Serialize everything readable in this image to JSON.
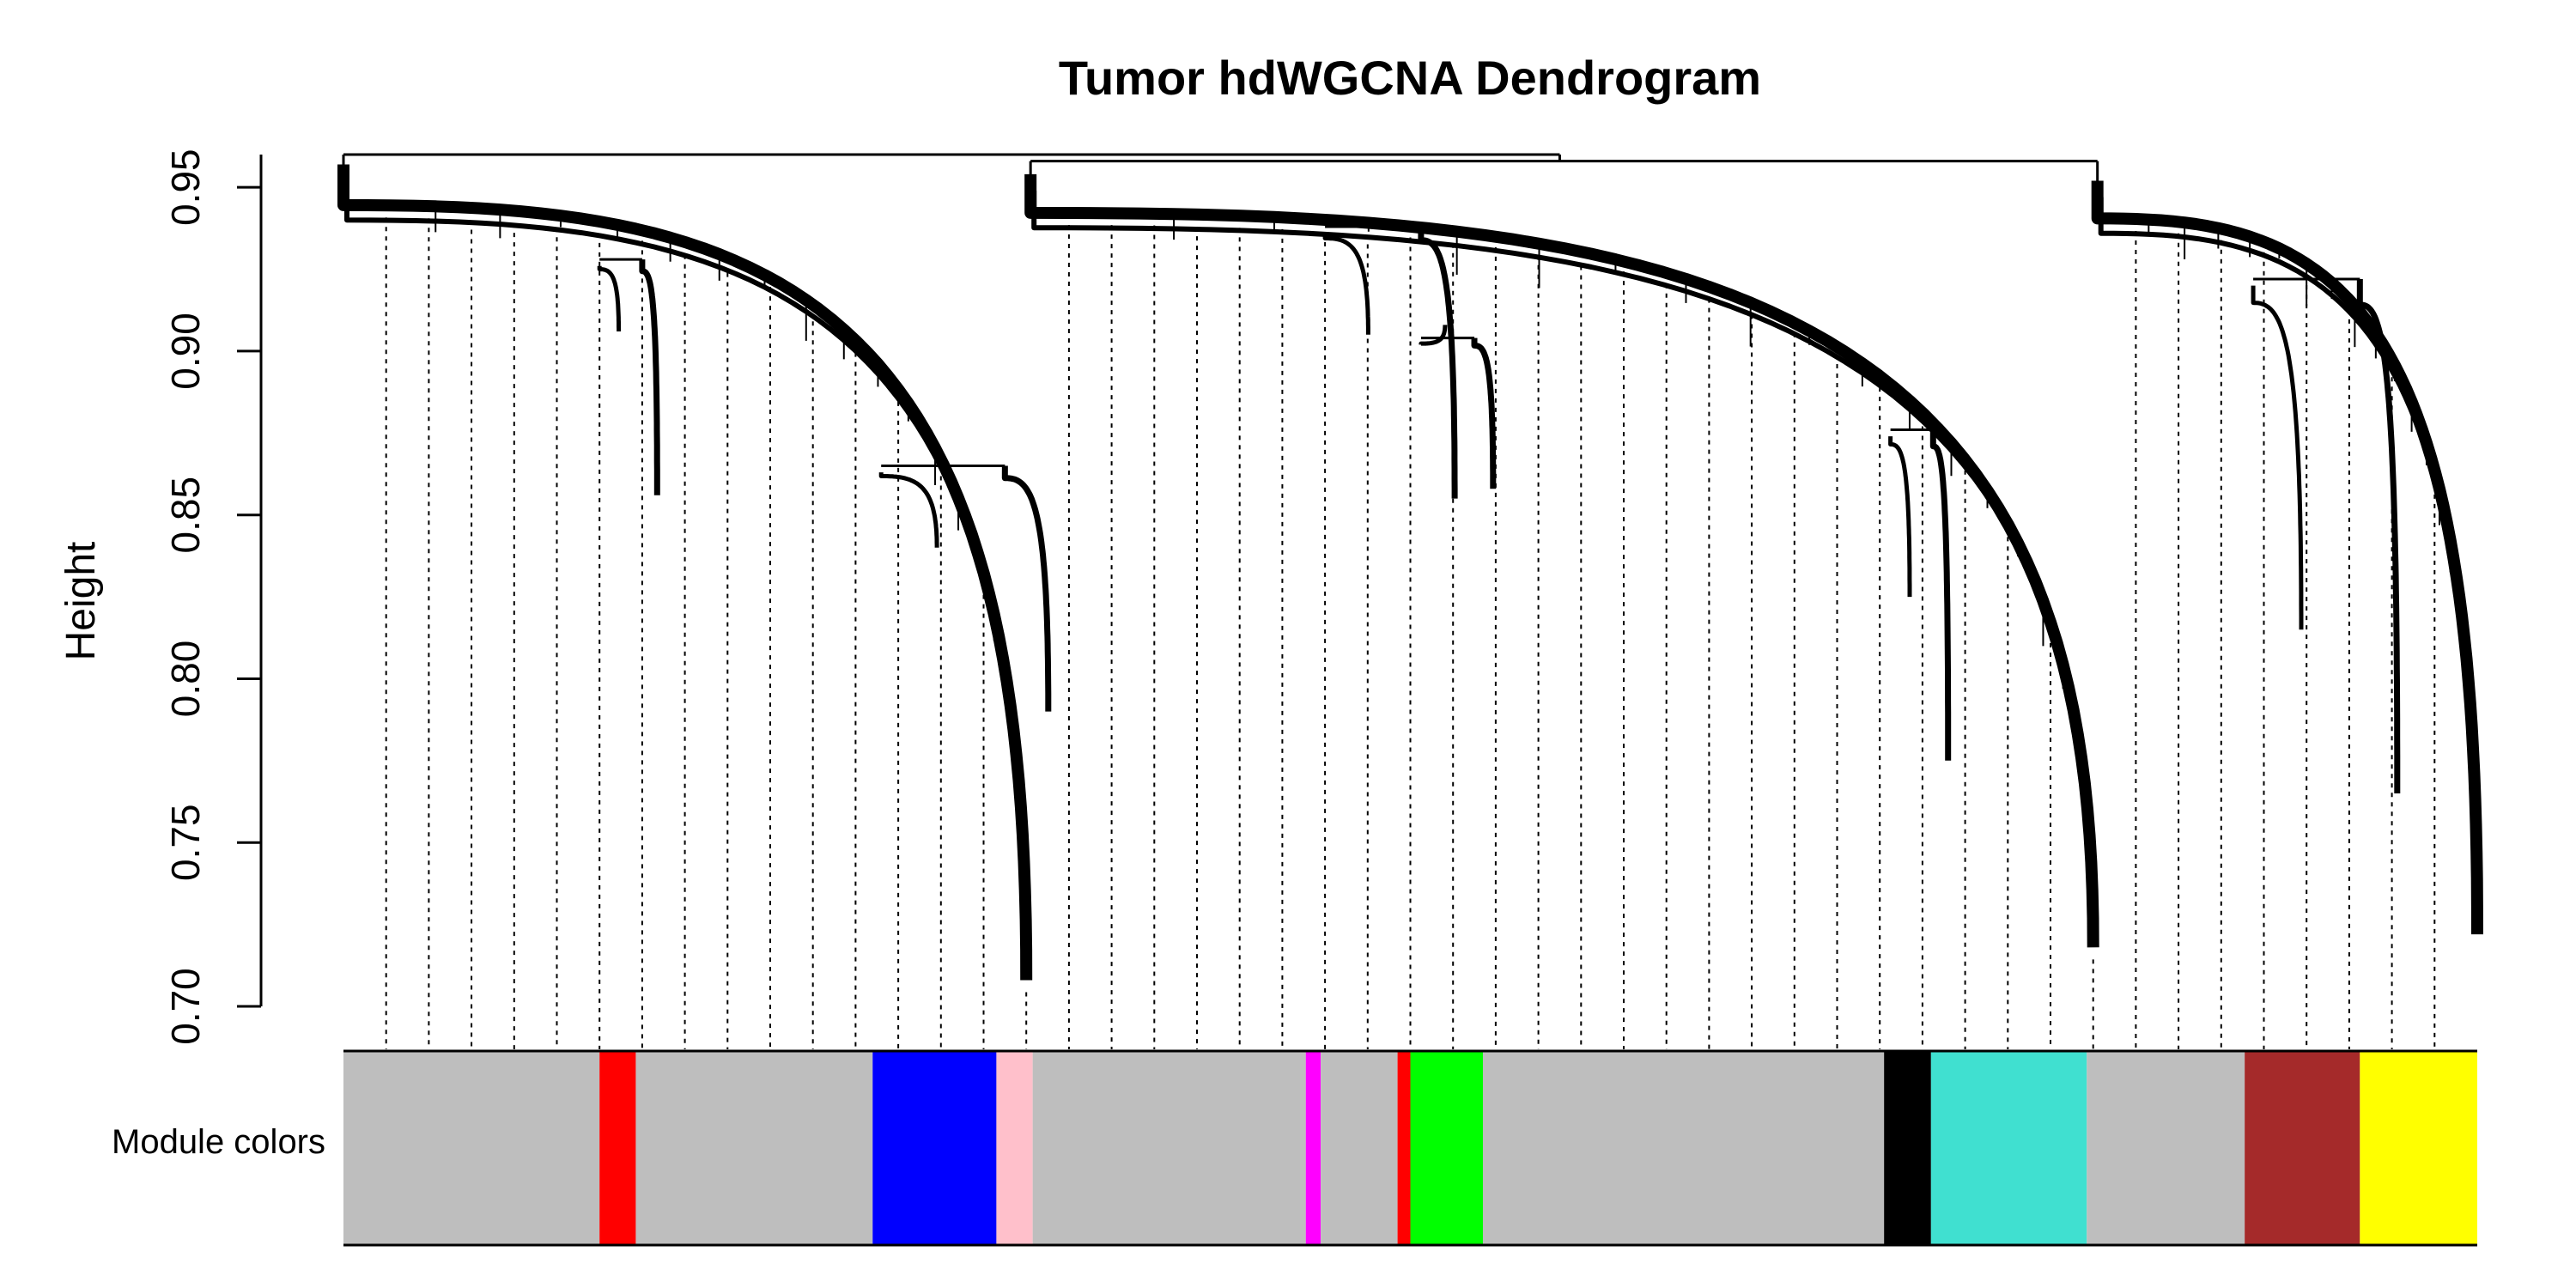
{
  "chart_data": {
    "type": "dendrogram",
    "title": "Tumor hdWGCNA Dendrogram",
    "ylabel": "Height",
    "ylim": [
      0.7,
      0.96
    ],
    "yticks": [
      "0.70",
      "0.75",
      "0.80",
      "0.85",
      "0.90",
      "0.95"
    ],
    "ytick_values": [
      0.7,
      0.75,
      0.8,
      0.85,
      0.9,
      0.95
    ],
    "color_bar_label": "Module colors",
    "root_height": 0.96,
    "clusters": [
      {
        "x": [
          0.0,
          0.32
        ],
        "top": 0.961,
        "bottom": 0.708
      },
      {
        "x": [
          0.322,
          0.82
        ],
        "top": 0.958,
        "bottom": 0.718
      },
      {
        "x": [
          0.822,
          1.0
        ],
        "top": 0.956,
        "bottom": 0.722
      }
    ],
    "subclusters": [
      {
        "x": [
          0.12,
          0.14
        ],
        "top": 0.928,
        "bottom": 0.856
      },
      {
        "x": [
          0.252,
          0.31
        ],
        "top": 0.865,
        "bottom": 0.79
      },
      {
        "x": [
          0.46,
          0.505
        ],
        "top": 0.938,
        "bottom": 0.855
      },
      {
        "x": [
          0.505,
          0.53
        ],
        "top": 0.904,
        "bottom": 0.858
      },
      {
        "x": [
          0.725,
          0.745
        ],
        "top": 0.876,
        "bottom": 0.775
      },
      {
        "x": [
          0.895,
          0.945
        ],
        "top": 0.922,
        "bottom": 0.765
      }
    ],
    "modules": [
      {
        "color": "#BEBEBE",
        "start": 0.0,
        "end": 0.12
      },
      {
        "color": "#FF0000",
        "start": 0.12,
        "end": 0.137
      },
      {
        "color": "#BEBEBE",
        "start": 0.137,
        "end": 0.248
      },
      {
        "color": "#0000FF",
        "start": 0.248,
        "end": 0.306
      },
      {
        "color": "#FFC0CB",
        "start": 0.306,
        "end": 0.323
      },
      {
        "color": "#BEBEBE",
        "start": 0.323,
        "end": 0.451
      },
      {
        "color": "#FF00FF",
        "start": 0.451,
        "end": 0.458
      },
      {
        "color": "#BEBEBE",
        "start": 0.458,
        "end": 0.494
      },
      {
        "color": "#FF0000",
        "start": 0.494,
        "end": 0.5
      },
      {
        "color": "#00FF00",
        "start": 0.5,
        "end": 0.534
      },
      {
        "color": "#BEBEBE",
        "start": 0.534,
        "end": 0.722
      },
      {
        "color": "#000000",
        "start": 0.722,
        "end": 0.744
      },
      {
        "color": "#40E0D0",
        "start": 0.744,
        "end": 0.817
      },
      {
        "color": "#BEBEBE",
        "start": 0.817,
        "end": 0.891
      },
      {
        "color": "#A52A2A",
        "start": 0.891,
        "end": 0.945
      },
      {
        "color": "#FFFF00",
        "start": 0.945,
        "end": 1.0
      }
    ]
  }
}
